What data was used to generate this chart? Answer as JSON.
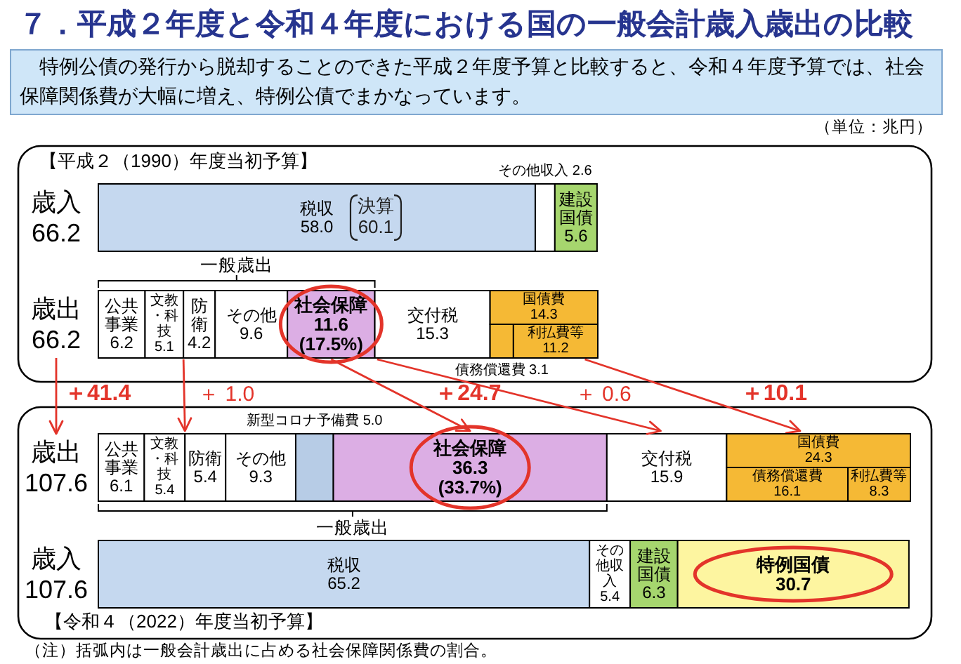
{
  "chart_data": {
    "type": "bar",
    "orientation": "horizontal",
    "stacked": true,
    "tick_labels": "y",
    "title": "７．平成２年度と令和４年度における国の一般会計歳入歳出の比較",
    "subtitle": "特例公債の発行から脱却することのできた平成２年度予算と比較すると、令和４年度予算では、社会保障関係費が大幅に増え、特例公債でまかなっています。",
    "categories": [
      "歳入\n66.2",
      "歳出\n66.2",
      "歳出\n107.6",
      "歳入\n107.6"
    ],
    "series": [
      {
        "name": "税収",
        "color": "#c5d8ef",
        "values": [
          58.0,
          null,
          null,
          65.2
        ],
        "value_labels": [
          "58.0",
          null,
          null,
          "65.2"
        ]
      },
      {
        "name": "その他収入",
        "color": "#ffffff",
        "values": [
          2.6,
          null,
          null,
          5.4
        ],
        "value_labels": [
          "2.6",
          null,
          null,
          "5.4"
        ]
      },
      {
        "name": "建設国債",
        "color": "#a6d66e",
        "values": [
          5.6,
          null,
          null,
          6.3
        ],
        "value_labels": [
          "5.6",
          null,
          null,
          "6.3"
        ]
      },
      {
        "name": "特例国債",
        "color": "#fdf5a0",
        "values": [
          null,
          null,
          null,
          30.7
        ],
        "value_labels": [
          null,
          null,
          null,
          "30.7"
        ]
      },
      {
        "name": "公共事業",
        "color": "#ffffff",
        "values": [
          null,
          6.2,
          6.1,
          null
        ],
        "value_labels": [
          null,
          "6.2",
          "6.1",
          null
        ]
      },
      {
        "name": "文教・科技",
        "color": "#ffffff",
        "values": [
          null,
          5.1,
          5.4,
          null
        ],
        "value_labels": [
          null,
          "5.1",
          "5.4",
          null
        ]
      },
      {
        "name": "防衛",
        "color": "#ffffff",
        "values": [
          null,
          4.2,
          5.4,
          null
        ],
        "value_labels": [
          null,
          "4.2",
          "5.4",
          null
        ]
      },
      {
        "name": "その他",
        "color": "#ffffff",
        "values": [
          null,
          9.6,
          9.3,
          null
        ],
        "value_labels": [
          null,
          "9.6",
          "9.3",
          null
        ]
      },
      {
        "name": "新型コロナ予備費",
        "color": "#b7cce6",
        "values": [
          null,
          null,
          5.0,
          null
        ],
        "value_labels": [
          null,
          null,
          "5.0",
          null
        ]
      },
      {
        "name": "社会保障",
        "color": "#dcaee4",
        "values": [
          null,
          11.6,
          36.3,
          null
        ],
        "value_labels": [
          null,
          "11.6\n(17.5%)",
          "36.3\n(33.7%)",
          null
        ]
      },
      {
        "name": "交付税",
        "color": "#ffffff",
        "values": [
          null,
          15.3,
          15.9,
          null
        ],
        "value_labels": [
          null,
          "15.3",
          "15.9",
          null
        ]
      },
      {
        "name": "債務償還費",
        "color": "#f5b935",
        "values": [
          null,
          3.1,
          16.1,
          null
        ],
        "value_labels": [
          null,
          "3.1",
          "16.1",
          null
        ]
      },
      {
        "name": "利払費等",
        "color": "#f5b935",
        "values": [
          null,
          11.2,
          8.3,
          null
        ],
        "value_labels": [
          null,
          "11.2",
          "8.3",
          null
        ]
      }
    ],
    "annotations": [
      "（単位：兆円）",
      "【平成２（1990）年度当初予算】",
      "決算\n60.1",
      "一般歳出",
      "国債費\n14.3",
      "＋41.4",
      "＋ 1.0",
      "＋24.7",
      "＋ 0.6",
      "＋10.1",
      "国債費\n24.3",
      "一般歳出",
      "【令和４（2022）年度当初予算】",
      "（注）括弧内は一般会計歳出に占める社会保障関係費の割合。"
    ]
  }
}
